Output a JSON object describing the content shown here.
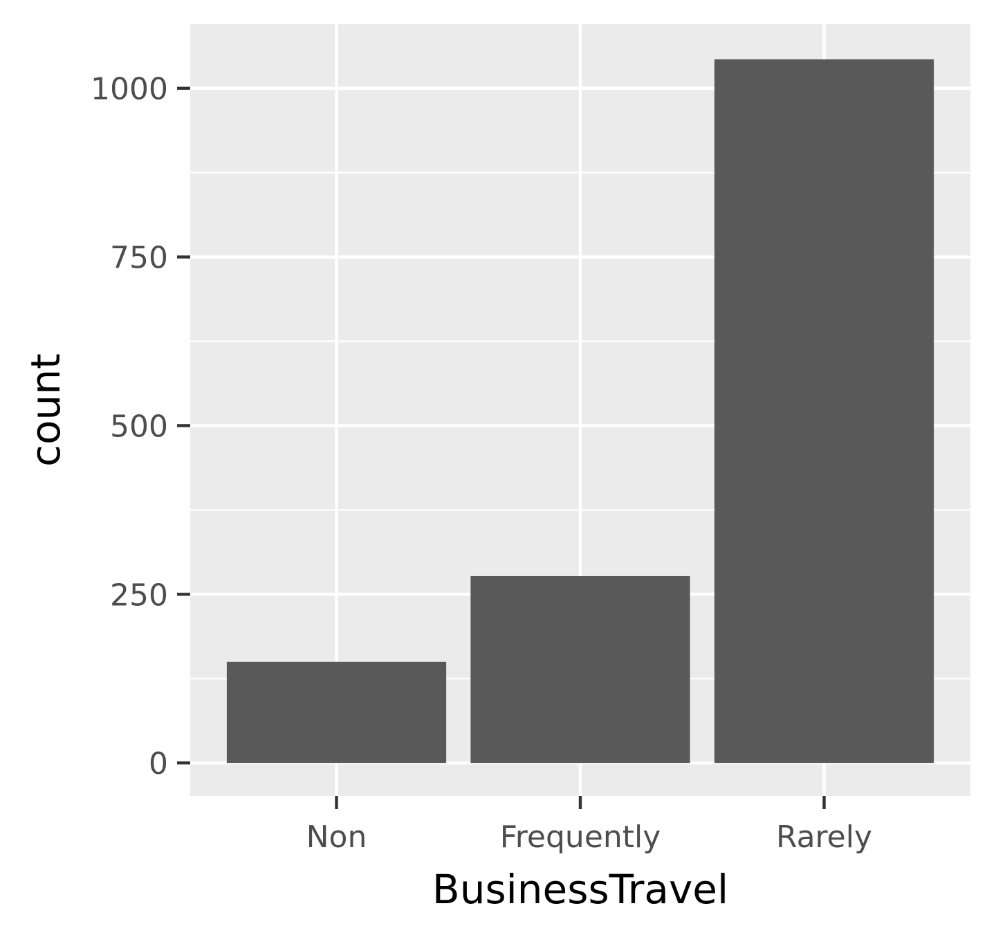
{
  "chart_data": {
    "type": "bar",
    "categories": [
      "Non",
      "Frequently",
      "Rarely"
    ],
    "values": [
      150,
      277,
      1043
    ],
    "title": "",
    "xlabel": "BusinessTravel",
    "ylabel": "count",
    "ylim": [
      -49,
      1095
    ],
    "yticks": [
      0,
      250,
      500,
      750,
      1000
    ],
    "ytick_labels": [
      "0",
      "250",
      "500",
      "750",
      "1000"
    ],
    "grid": true,
    "legend": "none"
  },
  "colors": {
    "panel_background": "#ebebeb",
    "grid": "#ffffff",
    "bar_fill": "#595959",
    "tick_color": "#333333",
    "tick_label": "#4d4d4d",
    "axis_title": "#000000"
  }
}
